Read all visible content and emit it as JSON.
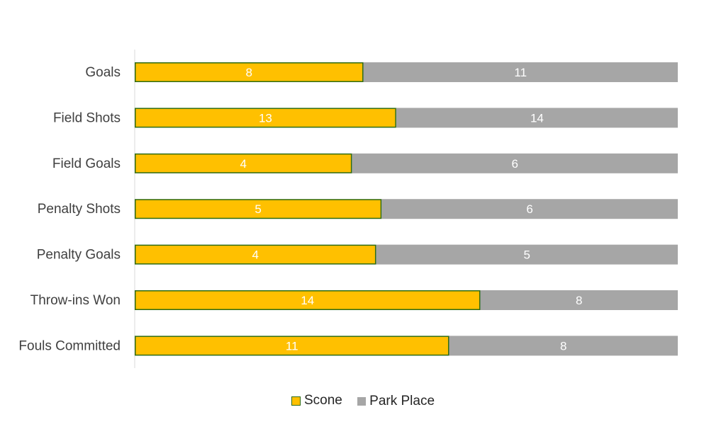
{
  "chart_data": {
    "type": "bar",
    "orientation": "horizontal",
    "stacked": "percent",
    "categories": [
      "Goals",
      "Field Shots",
      "Field Goals",
      "Penalty Shots",
      "Penalty Goals",
      "Throw-ins Won",
      "Fouls Committed"
    ],
    "series": [
      {
        "name": "Scone",
        "values": [
          8,
          13,
          4,
          5,
          4,
          14,
          11
        ],
        "color": "#FFC000",
        "border": "#2E6B12"
      },
      {
        "name": "Park Place",
        "values": [
          11,
          14,
          6,
          6,
          5,
          8,
          8
        ],
        "color": "#A6A6A6"
      }
    ],
    "legend_position": "bottom",
    "grid": false
  }
}
